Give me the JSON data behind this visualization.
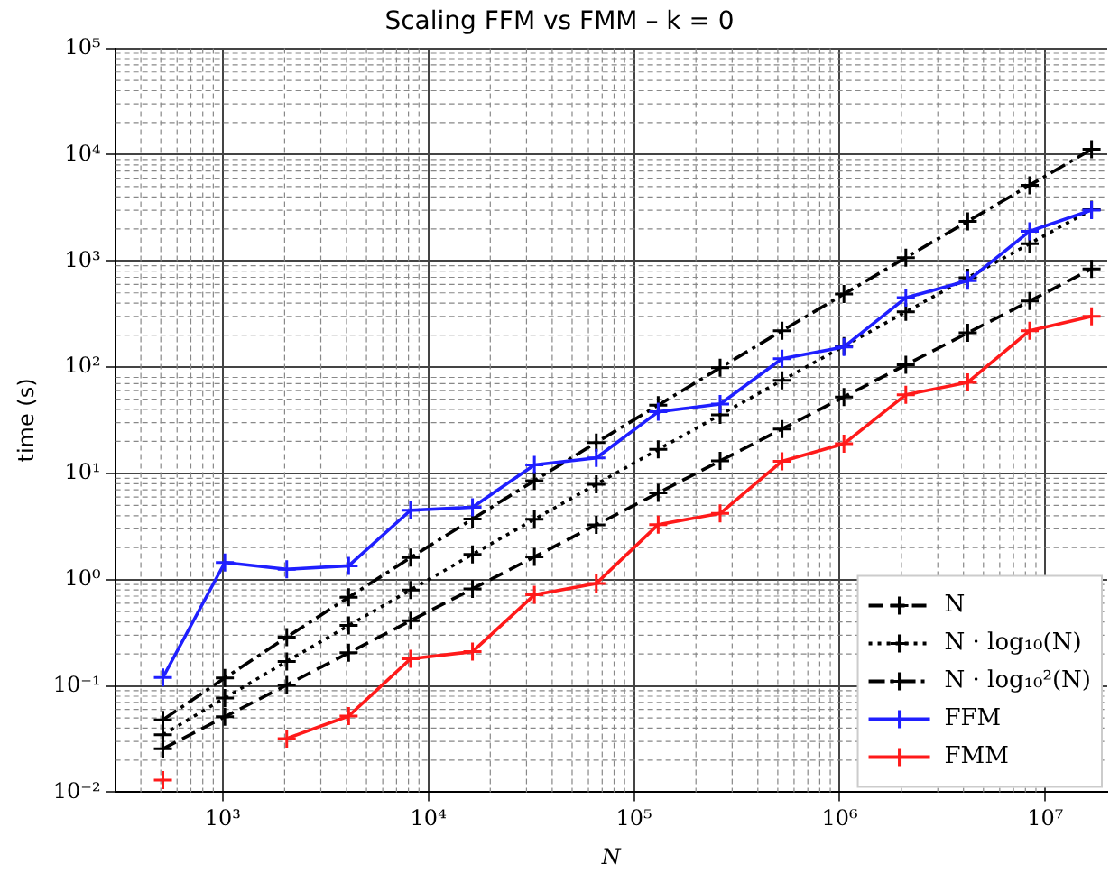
{
  "chart_data": {
    "type": "line",
    "title": "Scaling FFM vs FMM – k = 0",
    "xlabel": "N",
    "ylabel": "time (s)",
    "x": [
      512,
      1024,
      2048,
      4096,
      8192,
      16384,
      32768,
      65536,
      131072,
      262144,
      524288,
      1048576,
      2097152,
      4194304,
      8388608,
      16777216
    ],
    "series": [
      {
        "name": "N",
        "color": "#000000",
        "line_style": "dashed",
        "values": [
          0.0256,
          0.0512,
          0.102,
          0.205,
          0.41,
          0.82,
          1.64,
          3.28,
          6.55,
          13.1,
          26.2,
          52.4,
          105,
          210,
          419,
          839
        ]
      },
      {
        "name": "N · log₁₀(N)",
        "color": "#000000",
        "line_style": "dotted",
        "values": [
          0.0347,
          0.077,
          0.17,
          0.37,
          0.8,
          1.73,
          3.7,
          7.9,
          16.8,
          35.5,
          75,
          158,
          331,
          694,
          1452,
          3030
        ]
      },
      {
        "name": "N · log₁₀²(N)",
        "color": "#000000",
        "line_style": "dashdot",
        "values": [
          0.048,
          0.119,
          0.287,
          0.684,
          1.61,
          3.72,
          8.55,
          19.5,
          43.9,
          98.5,
          220,
          487,
          1073,
          2355,
          5147,
          11210
        ]
      },
      {
        "name": "FFM",
        "color": "#1f1fff",
        "line_style": "solid",
        "values": [
          0.12,
          1.45,
          1.25,
          1.35,
          4.5,
          4.8,
          12,
          14,
          38,
          45,
          120,
          155,
          450,
          650,
          1900,
          3000
        ]
      },
      {
        "name": "FMM",
        "color": "#ff1a1a",
        "line_style": "solid",
        "values": [
          0.013,
          null,
          0.032,
          0.052,
          0.18,
          0.21,
          0.72,
          0.92,
          3.3,
          4.2,
          13,
          19,
          55,
          72,
          220,
          300
        ]
      }
    ],
    "log": "xy",
    "xlim": [
      300,
      20000000
    ],
    "ylim": [
      0.01,
      100000
    ],
    "xticks": [
      {
        "value": 1000,
        "label": "10³"
      },
      {
        "value": 10000,
        "label": "10⁴"
      },
      {
        "value": 100000,
        "label": "10⁵"
      },
      {
        "value": 1000000,
        "label": "10⁶"
      },
      {
        "value": 10000000,
        "label": "10⁷"
      }
    ],
    "yticks": [
      {
        "value": 0.01,
        "label": "10⁻²"
      },
      {
        "value": 0.1,
        "label": "10⁻¹"
      },
      {
        "value": 1,
        "label": "10⁰"
      },
      {
        "value": 10,
        "label": "10¹"
      },
      {
        "value": 100,
        "label": "10²"
      },
      {
        "value": 1000,
        "label": "10³"
      },
      {
        "value": 10000,
        "label": "10⁴"
      },
      {
        "value": 100000,
        "label": "10⁵"
      }
    ],
    "grid": true,
    "legend": "bottom right",
    "marker": "cross"
  }
}
